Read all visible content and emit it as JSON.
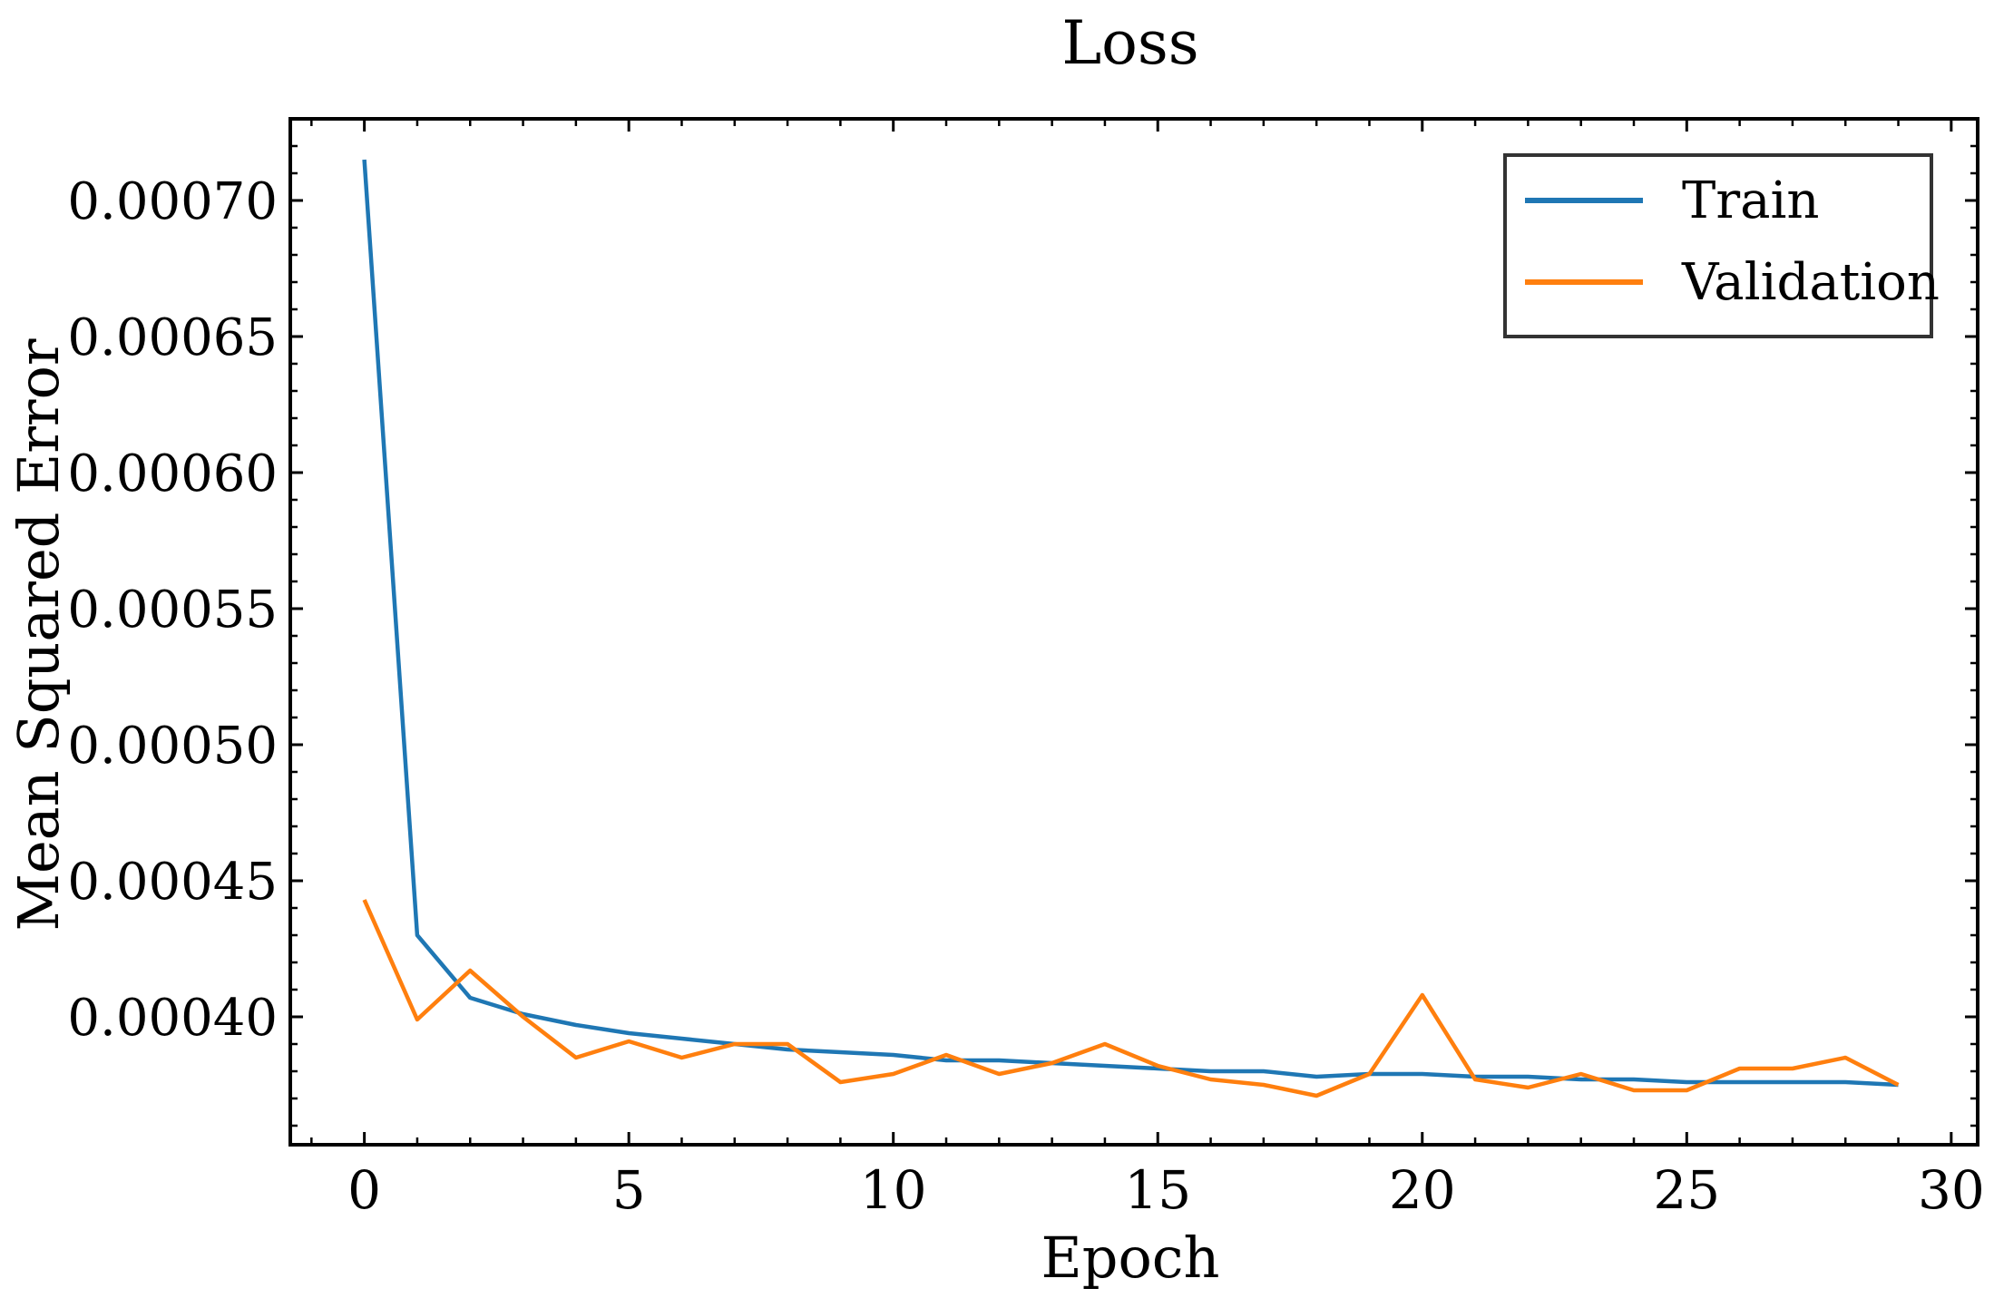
{
  "chart_data": {
    "type": "line",
    "title": "Loss",
    "xlabel": "Epoch",
    "ylabel": "Mean Squared Error",
    "xlim": [
      -1.4,
      30.5
    ],
    "ylim": [
      0.000353,
      0.00073
    ],
    "xticks": [
      0,
      5,
      10,
      15,
      20,
      25,
      30
    ],
    "xtick_labels": [
      "0",
      "5",
      "10",
      "15",
      "20",
      "25",
      "30"
    ],
    "yticks": [
      0.0004,
      0.00045,
      0.0005,
      0.00055,
      0.0006,
      0.00065,
      0.0007
    ],
    "ytick_labels": [
      "0.00040",
      "0.00045",
      "0.00050",
      "0.00055",
      "0.00060",
      "0.00065",
      "0.00070"
    ],
    "x_minor_step": 1,
    "y_minor_step": 1e-05,
    "grid": false,
    "legend_position": "top-right",
    "x": [
      0,
      1,
      2,
      3,
      4,
      5,
      6,
      7,
      8,
      9,
      10,
      11,
      12,
      13,
      14,
      15,
      16,
      17,
      18,
      19,
      20,
      21,
      22,
      23,
      24,
      25,
      26,
      27,
      28,
      29
    ],
    "series": [
      {
        "name": "Train",
        "color": "#1f77b4",
        "values": [
          0.000715,
          0.00043,
          0.000407,
          0.000401,
          0.000397,
          0.000394,
          0.000392,
          0.00039,
          0.000388,
          0.000387,
          0.000386,
          0.000384,
          0.000384,
          0.000383,
          0.000382,
          0.000381,
          0.00038,
          0.00038,
          0.000378,
          0.000379,
          0.000379,
          0.000378,
          0.000378,
          0.000377,
          0.000377,
          0.000376,
          0.000376,
          0.000376,
          0.000376,
          0.000375
        ]
      },
      {
        "name": "Validation",
        "color": "#ff7f0e",
        "values": [
          0.000443,
          0.000399,
          0.000417,
          0.0004,
          0.000385,
          0.000391,
          0.000385,
          0.00039,
          0.00039,
          0.000376,
          0.000379,
          0.000386,
          0.000379,
          0.000383,
          0.00039,
          0.000382,
          0.000377,
          0.000375,
          0.000371,
          0.000379,
          0.000408,
          0.000377,
          0.000374,
          0.000379,
          0.000373,
          0.000373,
          0.000381,
          0.000381,
          0.000385,
          0.000375
        ]
      }
    ]
  }
}
